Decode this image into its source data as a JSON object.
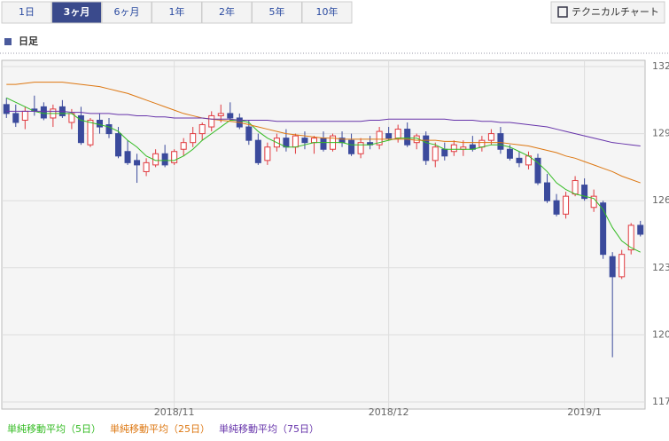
{
  "ui": {
    "tabs": [
      {
        "label": "1日"
      },
      {
        "label": "3ヶ月",
        "selected": true
      },
      {
        "label": "6ヶ月"
      },
      {
        "label": "1年"
      },
      {
        "label": "2年"
      },
      {
        "label": "5年"
      },
      {
        "label": "10年"
      }
    ],
    "button": "テクニカルチャート",
    "section": "日足"
  },
  "chart_data": {
    "type": "candlestick",
    "categories": [
      null,
      null,
      null,
      null,
      null,
      null,
      null,
      null,
      null,
      null,
      null,
      null,
      null,
      null,
      null,
      null,
      null,
      null,
      "2018/11",
      null,
      null,
      null,
      null,
      null,
      null,
      null,
      null,
      null,
      null,
      null,
      null,
      null,
      null,
      null,
      null,
      null,
      null,
      null,
      null,
      null,
      null,
      "2018/12",
      null,
      null,
      null,
      null,
      null,
      null,
      null,
      null,
      null,
      null,
      null,
      null,
      null,
      null,
      null,
      null,
      null,
      null,
      null,
      null,
      "2019/1",
      null,
      null,
      null,
      null,
      null,
      null
    ],
    "open": [
      130.3,
      129.9,
      129.6,
      130.1,
      130.2,
      129.7,
      130.2,
      129.5,
      129.8,
      128.5,
      129.6,
      129.4,
      129.0,
      128.2,
      127.8,
      127.3,
      127.6,
      128.1,
      127.7,
      128.3,
      128.6,
      129.0,
      129.3,
      129.8,
      129.9,
      129.7,
      129.3,
      128.7,
      127.8,
      128.4,
      128.8,
      128.4,
      128.8,
      128.6,
      128.8,
      128.3,
      128.8,
      128.7,
      128.1,
      128.6,
      128.5,
      129.0,
      128.8,
      129.2,
      128.6,
      128.9,
      127.8,
      128.3,
      128.2,
      128.3,
      128.5,
      128.4,
      128.7,
      129.0,
      128.3,
      127.9,
      127.6,
      127.9,
      126.8,
      126.0,
      125.4,
      126.3,
      126.7,
      125.7,
      125.9,
      123.5,
      122.6,
      123.8,
      124.9
    ],
    "high": [
      130.6,
      130.3,
      130.2,
      130.7,
      130.4,
      130.3,
      130.5,
      130.1,
      130.2,
      129.7,
      129.9,
      129.7,
      129.3,
      128.7,
      128.1,
      127.9,
      128.3,
      128.5,
      128.3,
      128.8,
      129.3,
      129.5,
      130.0,
      130.3,
      130.4,
      129.9,
      129.6,
      129.0,
      128.6,
      129.0,
      129.2,
      129.0,
      129.1,
      128.9,
      129.1,
      129.0,
      129.1,
      129.0,
      128.8,
      128.9,
      129.3,
      129.3,
      129.4,
      129.5,
      129.0,
      129.1,
      128.6,
      128.6,
      128.7,
      128.7,
      128.9,
      128.9,
      129.2,
      129.3,
      128.5,
      128.2,
      128.2,
      128.1,
      127.2,
      126.3,
      126.4,
      127.1,
      127.0,
      126.5,
      126.0,
      123.7,
      123.8,
      125.0,
      125.1
    ],
    "low": [
      129.7,
      129.3,
      129.2,
      129.8,
      129.6,
      129.3,
      129.7,
      129.2,
      128.5,
      128.4,
      129.0,
      128.8,
      127.9,
      127.6,
      126.8,
      127.1,
      127.5,
      127.5,
      127.6,
      128.0,
      128.4,
      128.7,
      129.1,
      129.5,
      129.6,
      129.2,
      128.5,
      127.6,
      127.6,
      128.2,
      128.2,
      128.1,
      128.3,
      128.1,
      128.2,
      128.2,
      128.4,
      128.0,
      127.9,
      128.3,
      128.3,
      128.7,
      128.6,
      128.4,
      128.3,
      127.6,
      127.5,
      127.8,
      128.0,
      128.0,
      128.2,
      128.2,
      128.5,
      128.1,
      127.8,
      127.5,
      127.4,
      126.7,
      125.9,
      125.3,
      125.2,
      126.2,
      126.0,
      125.5,
      123.4,
      119.0,
      122.5,
      123.6,
      124.4
    ],
    "close": [
      129.9,
      129.5,
      130.0,
      130.0,
      129.7,
      130.1,
      129.8,
      129.9,
      128.6,
      129.6,
      129.3,
      129.0,
      128.0,
      127.7,
      127.6,
      127.7,
      128.1,
      127.6,
      128.2,
      128.6,
      129.0,
      129.4,
      129.8,
      129.9,
      129.7,
      129.3,
      128.7,
      127.7,
      128.4,
      128.8,
      128.4,
      128.9,
      128.6,
      128.8,
      128.3,
      128.9,
      128.6,
      128.1,
      128.6,
      128.5,
      129.1,
      128.8,
      129.2,
      128.5,
      128.9,
      127.8,
      128.4,
      128.0,
      128.5,
      128.4,
      128.3,
      128.7,
      129.0,
      128.3,
      127.9,
      127.7,
      128.0,
      126.8,
      126.0,
      125.4,
      126.2,
      126.9,
      126.1,
      126.2,
      123.6,
      122.6,
      123.6,
      124.9,
      124.5
    ],
    "up_color": "#e0393e",
    "down_color": "#3b4a9c",
    "series": [
      {
        "name": "単純移動平均（5日）",
        "color": "#33bb22",
        "values": [
          130.6,
          130.4,
          130.2,
          130.0,
          129.9,
          129.9,
          129.9,
          129.9,
          129.6,
          129.5,
          129.4,
          129.3,
          129.1,
          128.7,
          128.4,
          128.0,
          127.8,
          127.8,
          127.8,
          128.0,
          128.3,
          128.7,
          129.0,
          129.3,
          129.6,
          129.6,
          129.5,
          129.1,
          128.8,
          128.6,
          128.4,
          128.4,
          128.5,
          128.6,
          128.6,
          128.6,
          128.6,
          128.5,
          128.5,
          128.5,
          128.6,
          128.7,
          128.8,
          128.8,
          128.8,
          128.6,
          128.5,
          128.3,
          128.3,
          128.3,
          128.3,
          128.4,
          128.5,
          128.5,
          128.4,
          128.2,
          128.0,
          127.7,
          127.3,
          126.8,
          126.5,
          126.3,
          126.2,
          126.1,
          125.6,
          124.8,
          124.2,
          123.9,
          123.7
        ]
      },
      {
        "name": "単純移動平均（25日）",
        "color": "#dd7711",
        "values": [
          131.2,
          131.2,
          131.25,
          131.3,
          131.3,
          131.3,
          131.3,
          131.25,
          131.2,
          131.15,
          131.1,
          131.0,
          130.9,
          130.8,
          130.65,
          130.5,
          130.35,
          130.2,
          130.05,
          129.9,
          129.8,
          129.7,
          129.65,
          129.6,
          129.55,
          129.5,
          129.4,
          129.3,
          129.2,
          129.1,
          129.0,
          128.95,
          128.9,
          128.85,
          128.8,
          128.8,
          128.75,
          128.75,
          128.75,
          128.75,
          128.75,
          128.75,
          128.75,
          128.75,
          128.7,
          128.7,
          128.7,
          128.65,
          128.65,
          128.6,
          128.6,
          128.6,
          128.6,
          128.6,
          128.55,
          128.5,
          128.45,
          128.35,
          128.25,
          128.15,
          128.0,
          127.9,
          127.75,
          127.6,
          127.45,
          127.3,
          127.1,
          126.95,
          126.8
        ]
      },
      {
        "name": "単純移動平均（75日）",
        "color": "#6633aa",
        "values": [
          130.0,
          130.0,
          130.0,
          130.0,
          130.0,
          130.0,
          130.0,
          129.95,
          129.95,
          129.9,
          129.9,
          129.9,
          129.85,
          129.85,
          129.8,
          129.8,
          129.75,
          129.75,
          129.7,
          129.7,
          129.7,
          129.7,
          129.65,
          129.65,
          129.65,
          129.6,
          129.6,
          129.6,
          129.6,
          129.55,
          129.55,
          129.55,
          129.55,
          129.55,
          129.55,
          129.55,
          129.55,
          129.55,
          129.55,
          129.6,
          129.6,
          129.65,
          129.65,
          129.65,
          129.65,
          129.65,
          129.65,
          129.65,
          129.6,
          129.6,
          129.6,
          129.55,
          129.55,
          129.5,
          129.5,
          129.45,
          129.4,
          129.35,
          129.3,
          129.2,
          129.1,
          129.0,
          128.9,
          128.8,
          128.7,
          128.6,
          128.55,
          128.5,
          128.45
        ]
      }
    ],
    "ylim": [
      117,
      132
    ],
    "yticks": [
      117,
      120,
      123,
      126,
      129,
      132
    ],
    "grid": true
  }
}
